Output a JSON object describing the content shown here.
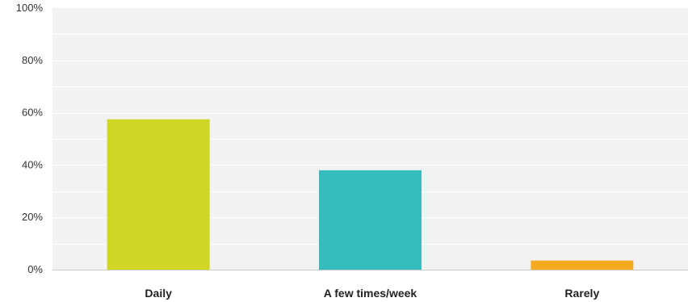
{
  "chart_data": {
    "type": "bar",
    "categories": [
      "Daily",
      "A few times/week",
      "Rarely"
    ],
    "values": [
      57.5,
      38,
      3.5
    ],
    "colors": [
      "#cfd626",
      "#33bdbf",
      "#f5ab1f"
    ],
    "ylim": [
      0,
      100
    ],
    "yticks": [
      0,
      20,
      40,
      60,
      80,
      100
    ],
    "ytick_labels": [
      "0%",
      "20%",
      "40%",
      "60%",
      "80%",
      "100%"
    ],
    "title": "",
    "xlabel": "",
    "ylabel": "",
    "grid": true,
    "minor_grid": true
  }
}
